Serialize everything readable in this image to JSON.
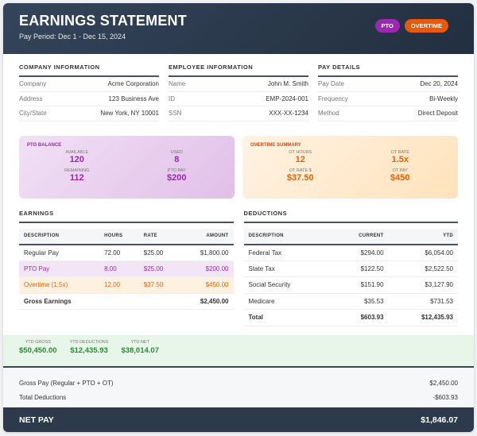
{
  "header": {
    "title": "EARNINGS STATEMENT",
    "pay_period": "Pay Period: Dec 1 - Dec 15, 2024",
    "badges": [
      {
        "label": "PTO",
        "color": "#9c27b0"
      },
      {
        "label": "OVERTIME",
        "color": "#e8590c"
      }
    ]
  },
  "company": {
    "title": "COMPANY INFORMATION",
    "rows": [
      {
        "k": "Company",
        "v": "Acme Corporation"
      },
      {
        "k": "Address",
        "v": "123 Business Ave"
      },
      {
        "k": "City/State",
        "v": "New York, NY 10001"
      }
    ]
  },
  "employee": {
    "title": "EMPLOYEE INFORMATION",
    "rows": [
      {
        "k": "Name",
        "v": "John M. Smith"
      },
      {
        "k": "ID",
        "v": "EMP-2024-001"
      },
      {
        "k": "SSN",
        "v": "XXX-XX-1234"
      }
    ]
  },
  "pay_details": {
    "title": "PAY DETAILS",
    "rows": [
      {
        "k": "Pay Date",
        "v": "Dec 20, 2024"
      },
      {
        "k": "Frequency",
        "v": "Bi-Weekly"
      },
      {
        "k": "Method",
        "v": "Direct Deposit"
      }
    ]
  },
  "pto_balance": {
    "title": "PTO BALANCE",
    "items": [
      {
        "l": "AVAILABLE",
        "n": "120"
      },
      {
        "l": "USED",
        "n": "8"
      },
      {
        "l": "REMAINING",
        "n": "112"
      },
      {
        "l": "PTO PAY",
        "n": "$200"
      }
    ]
  },
  "overtime_summary": {
    "title": "OVERTIME SUMMARY",
    "items": [
      {
        "l": "OT HOURS",
        "n": "12"
      },
      {
        "l": "OT RATE",
        "n": "1.5x"
      },
      {
        "l": "OT RATE $",
        "n": "$37.50"
      },
      {
        "l": "OT PAY",
        "n": "$450"
      }
    ]
  },
  "earnings": {
    "title": "EARNINGS",
    "headers": [
      "DESCRIPTION",
      "HOURS",
      "RATE",
      "AMOUNT"
    ],
    "rows": [
      [
        "Regular Pay",
        "72.00",
        "$25.00",
        "$1,800.00"
      ],
      [
        "PTO Pay",
        "8.00",
        "$25.00",
        "$200.00"
      ],
      [
        "Overtime (1.5x)",
        "12.00",
        "$37.50",
        "$450.00"
      ]
    ],
    "total": {
      "label": "Gross Earnings",
      "amount": "$2,450.00"
    }
  },
  "deductions": {
    "title": "DEDUCTIONS",
    "headers": [
      "DESCRIPTION",
      "CURRENT",
      "YTD"
    ],
    "rows": [
      [
        "Federal Tax",
        "$294.00",
        "$6,054.00"
      ],
      [
        "State Tax",
        "$122.50",
        "$2,522.50"
      ],
      [
        "Social Security",
        "$151.90",
        "$3,127.90"
      ],
      [
        "Medicare",
        "$35.53",
        "$731.53"
      ]
    ],
    "total": [
      "Total",
      "$603.93",
      "$12,435.93"
    ]
  },
  "ytd": [
    {
      "l": "YTD GROSS",
      "n": "$50,450.00"
    },
    {
      "l": "YTD DEDUCTIONS",
      "n": "$12,435.93"
    },
    {
      "l": "YTD NET",
      "n": "$38,014.07"
    }
  ],
  "summary": [
    {
      "k": "Gross Pay (Regular + PTO + OT)",
      "v": "$2,450.00"
    },
    {
      "k": "Total Deductions",
      "v": "-$603.93"
    }
  ],
  "net_pay": {
    "label": "NET PAY",
    "value": "$1,846.07"
  }
}
